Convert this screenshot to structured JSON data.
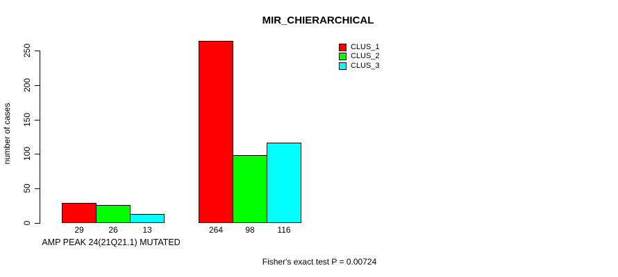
{
  "chart_data": {
    "type": "bar",
    "title": "MIR_CHIERARCHICAL",
    "xlabel": "AMP PEAK 24(21Q21.1) MUTATED",
    "ylabel": "number of cases",
    "categories": [
      "AMP PEAK 24(21Q21.1) MUTATED",
      ""
    ],
    "series": [
      {
        "name": "CLUS_1",
        "color": "#FF0000",
        "values": [
          29,
          264
        ]
      },
      {
        "name": "CLUS_2",
        "color": "#00FF00",
        "values": [
          26,
          98
        ]
      },
      {
        "name": "CLUS_3",
        "color": "#00FFFF",
        "values": [
          13,
          116
        ]
      }
    ],
    "yticks": [
      0,
      50,
      100,
      150,
      200,
      250
    ],
    "ylim": [
      0,
      250
    ],
    "bar_value_labels_shown": true,
    "legend_position": "top-right",
    "grid": false,
    "annotation": "Fisher's exact test P = 0.00724"
  }
}
